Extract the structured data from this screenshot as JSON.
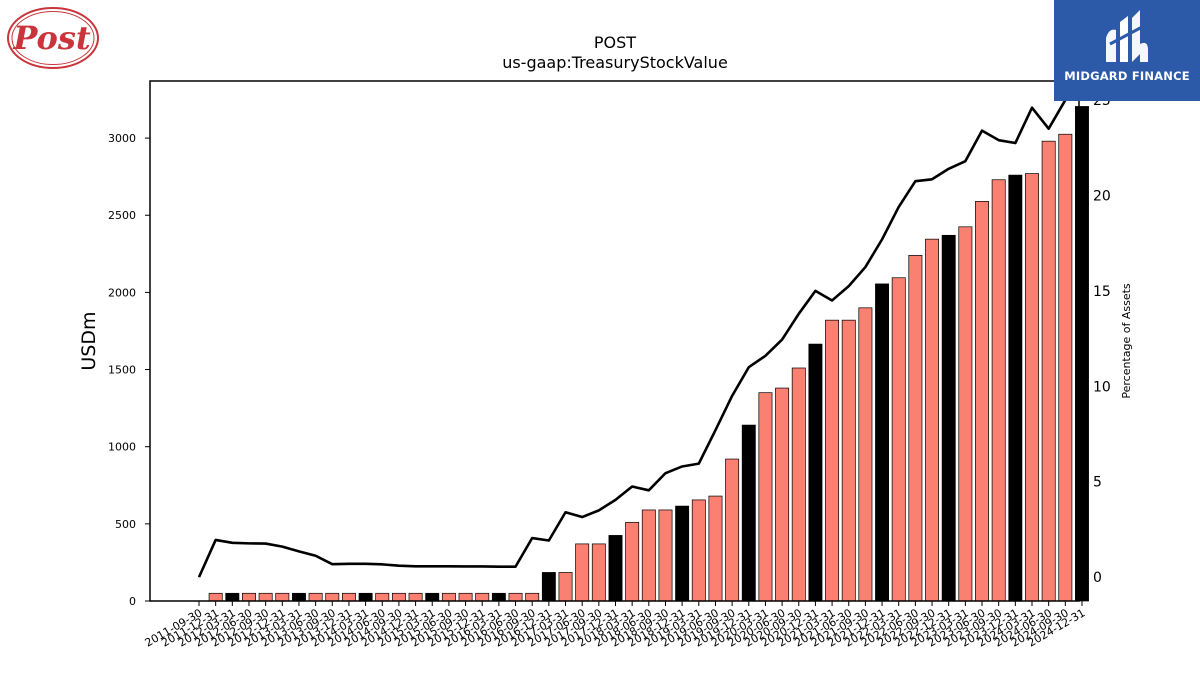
{
  "branding": {
    "post_logo_text": "Post",
    "midgard_text": "MIDGARD FINANCE",
    "post_color": "#c8363c",
    "midgard_color": "#2c5aa9"
  },
  "chart_data": {
    "type": "bar",
    "title": "POST",
    "subtitle": "us-gaap:TreasuryStockValue",
    "ylabel": "USDm",
    "y2label": "Percentage of Assets",
    "ylim": [
      0,
      3370
    ],
    "y2lim": [
      -1.25,
      26.0
    ],
    "yticks": [
      0,
      500,
      1000,
      1500,
      2000,
      2500,
      3000
    ],
    "y2ticks": [
      0,
      5,
      10,
      15,
      20,
      25
    ],
    "categories": [
      "2011-09-30",
      "2011-12-31",
      "2012-03-31",
      "2012-06-30",
      "2012-09-30",
      "2012-12-31",
      "2013-03-31",
      "2013-06-30",
      "2013-09-30",
      "2013-12-31",
      "2014-03-31",
      "2014-06-30",
      "2014-09-30",
      "2014-12-31",
      "2015-03-31",
      "2015-06-30",
      "2015-09-30",
      "2015-12-31",
      "2016-03-31",
      "2016-06-30",
      "2016-09-30",
      "2016-12-31",
      "2017-03-31",
      "2017-06-30",
      "2017-09-30",
      "2017-12-31",
      "2018-03-31",
      "2018-06-30",
      "2018-09-30",
      "2018-12-31",
      "2019-03-31",
      "2019-06-30",
      "2019-09-30",
      "2019-12-31",
      "2020-03-31",
      "2020-06-30",
      "2020-09-30",
      "2020-12-31",
      "2021-03-31",
      "2021-06-30",
      "2021-09-30",
      "2021-12-31",
      "2022-03-31",
      "2022-06-30",
      "2022-09-30",
      "2022-12-31",
      "2023-03-31",
      "2023-06-30",
      "2023-09-30",
      "2023-12-31",
      "2024-03-31",
      "2024-06-30",
      "2024-09-30",
      "2024-12-31"
    ],
    "visible_tick_labels": [
      "2011-09-30",
      "2011-12-31",
      "2012-03-31",
      "2012-06-30",
      "2012-09-30",
      "2012-12-31",
      "2013-03-31",
      "2013-06-30",
      "2013-09-30",
      "2013-12-31",
      "2014-03-31",
      "2014-06-30",
      "2014-09-30",
      "2014-12-31",
      "2015-03-31",
      "2015-06-30",
      "2015-09-30",
      "2015-12-31",
      "2016-03-31",
      "2016-06-30",
      "2016-09-30",
      "2016-12-31",
      "2017-03-31",
      "2017-06-30",
      "2017-09-30",
      "2017-12-31",
      "2018-03-31",
      "2018-06-30",
      "2018-09-30",
      "2018-12-31",
      "2019-03-31",
      "2019-06-30",
      "2019-09-30",
      "2019-12-31",
      "2020-03-31",
      "2020-06-30",
      "2020-09-30",
      "2020-12-31",
      "2021-03-31",
      "2021-06-30",
      "2021-09-30",
      "2021-12-31",
      "2022-03-31",
      "2022-06-30",
      "2022-09-30",
      "2022-12-31",
      "2023-03-31",
      "2023-06-30",
      "2023-09-30",
      "2023-12-31",
      "2024-03-31",
      "2024-06-30",
      "2024-09-30",
      "2024-12-31"
    ],
    "bar_values": [
      null,
      50,
      50,
      50,
      50,
      50,
      50,
      50,
      50,
      50,
      50,
      50,
      50,
      50,
      50,
      50,
      50,
      50,
      50,
      50,
      50,
      185,
      185,
      370,
      370,
      425,
      510,
      590,
      590,
      615,
      655,
      680,
      920,
      1140,
      1350,
      1380,
      1510,
      1665,
      1820,
      1820,
      1900,
      2055,
      2095,
      2240,
      2345,
      2370,
      2425,
      2590,
      2730,
      2760,
      2770,
      2980,
      3025,
      3205
    ],
    "bar_highlight": [
      false,
      false,
      true,
      false,
      false,
      false,
      true,
      false,
      false,
      false,
      true,
      false,
      false,
      false,
      true,
      false,
      false,
      false,
      true,
      false,
      false,
      true,
      false,
      false,
      false,
      true,
      false,
      false,
      false,
      true,
      false,
      false,
      false,
      true,
      false,
      false,
      false,
      true,
      false,
      false,
      false,
      true,
      false,
      false,
      false,
      true,
      false,
      false,
      false,
      true,
      false,
      false,
      false,
      true
    ],
    "line_values": [
      0.0,
      1.95,
      1.8,
      1.77,
      1.76,
      1.6,
      1.35,
      1.12,
      0.68,
      0.7,
      0.7,
      0.67,
      0.6,
      0.57,
      0.57,
      0.57,
      0.56,
      0.56,
      0.55,
      0.55,
      2.05,
      1.92,
      3.4,
      3.15,
      3.5,
      4.05,
      4.75,
      4.55,
      5.45,
      5.8,
      5.95,
      7.7,
      9.5,
      11.0,
      11.6,
      12.45,
      13.8,
      15.0,
      14.5,
      15.25,
      16.25,
      17.7,
      19.4,
      20.75,
      20.85,
      21.4,
      21.8,
      23.4,
      22.9,
      22.75,
      24.6,
      23.5,
      25.0,
      null
    ],
    "colors": {
      "bar": "#fa8072",
      "bar_highlight": "#000000",
      "line": "#000000"
    }
  }
}
